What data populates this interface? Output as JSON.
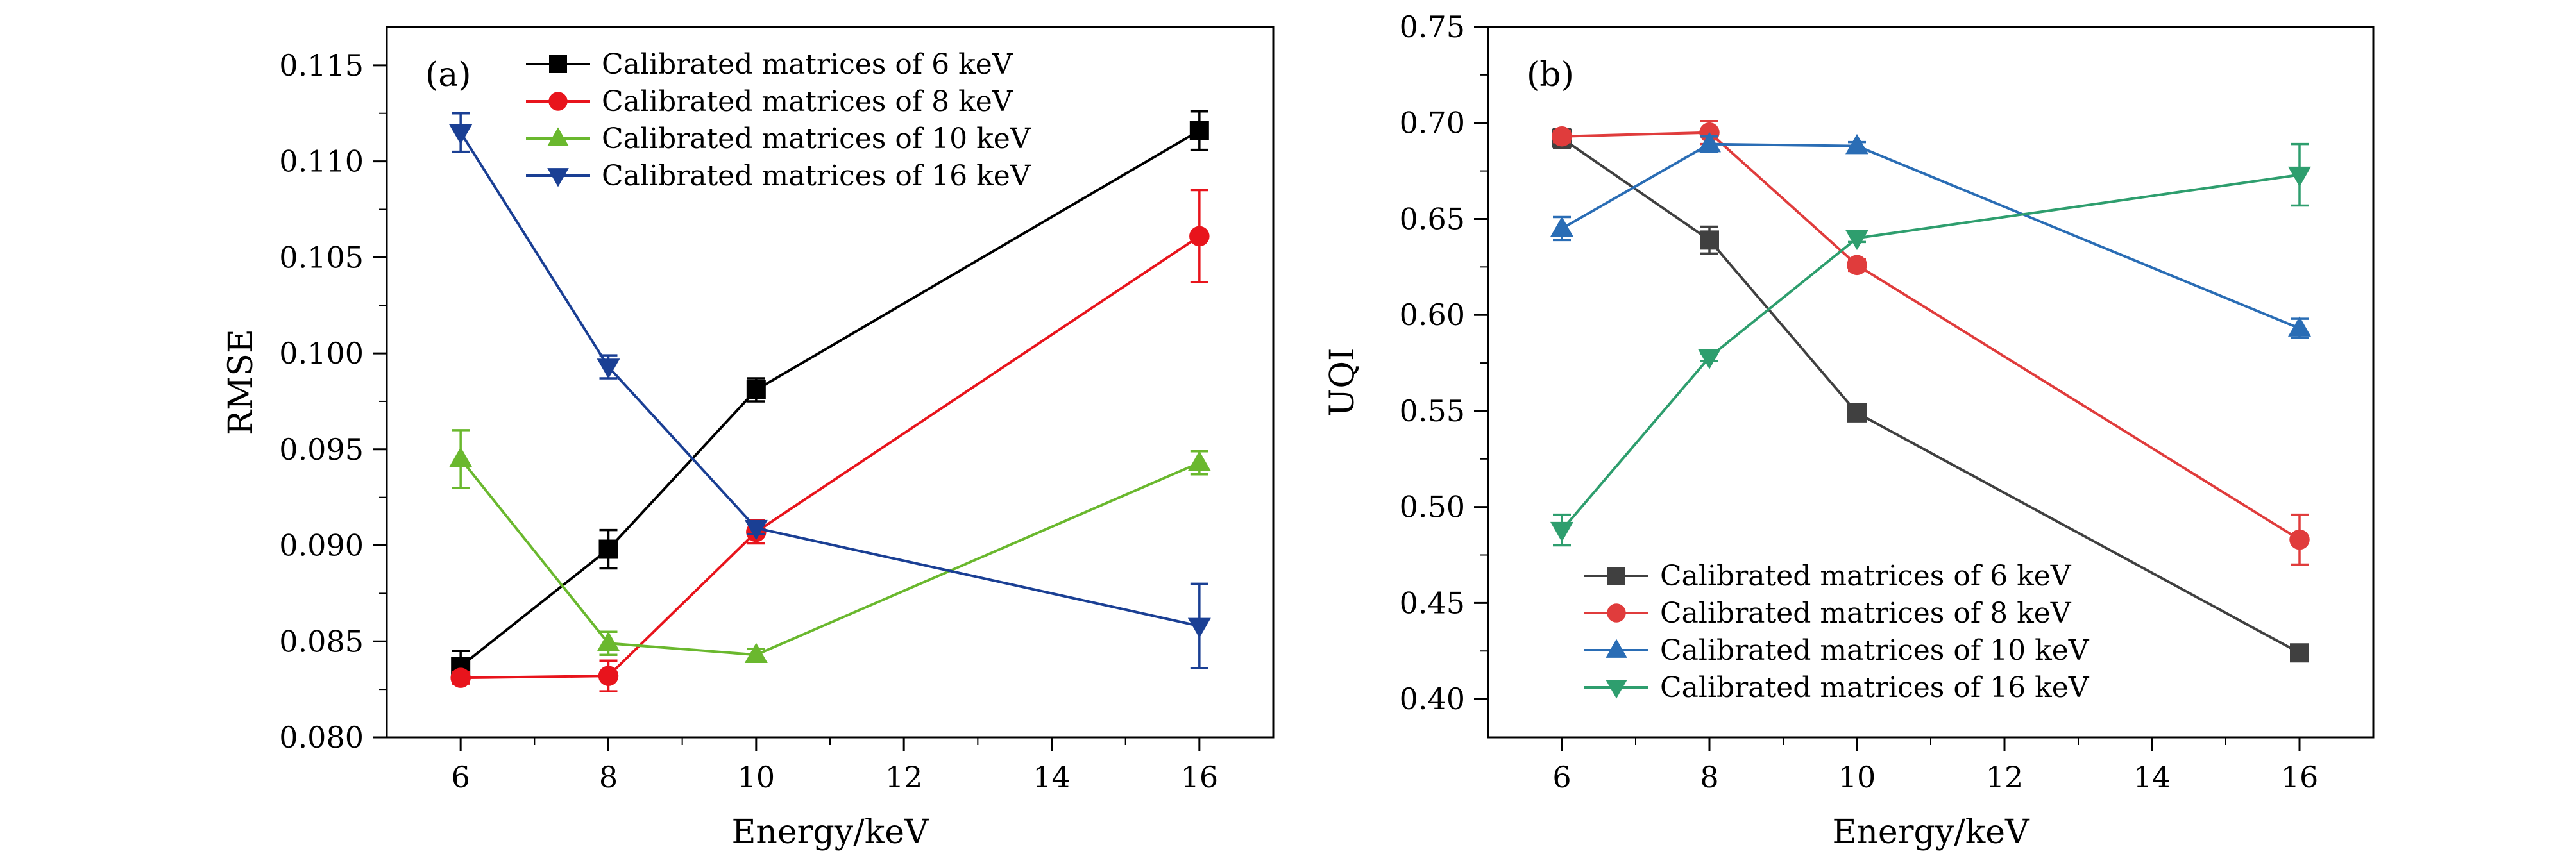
{
  "chart_data": [
    {
      "type": "line",
      "panel_label": "(a)",
      "xlabel": "Energy/keV",
      "ylabel": "RMSE",
      "xlim": [
        5,
        17
      ],
      "ylim": [
        0.08,
        0.117
      ],
      "xticks": [
        6,
        8,
        10,
        12,
        14,
        16
      ],
      "xtick_labels": [
        "6",
        "8",
        "10",
        "12",
        "14",
        "16"
      ],
      "yticks": [
        0.08,
        0.085,
        0.09,
        0.095,
        0.1,
        0.105,
        0.11,
        0.115
      ],
      "ytick_labels": [
        "0.080",
        "0.085",
        "0.090",
        "0.095",
        "0.100",
        "0.105",
        "0.110",
        "0.115"
      ],
      "legend_position": "top-right",
      "grid": false,
      "series": [
        {
          "name": "Calibrated matrices of 6 keV",
          "color": "#000000",
          "marker": "square",
          "x": [
            6,
            8,
            10,
            16
          ],
          "y": [
            0.0837,
            0.0898,
            0.0981,
            0.1116
          ],
          "err": [
            0.0008,
            0.001,
            0.0006,
            0.001
          ]
        },
        {
          "name": "Calibrated matrices of 8 keV",
          "color": "#e8141c",
          "marker": "circle",
          "x": [
            6,
            8,
            10,
            16
          ],
          "y": [
            0.0831,
            0.0832,
            0.0907,
            0.1061
          ],
          "err": [
            0.0003,
            0.0008,
            0.0006,
            0.0024
          ]
        },
        {
          "name": "Calibrated matrices of 10 keV",
          "color": "#6ab82e",
          "marker": "triangle-up",
          "x": [
            6,
            8,
            10,
            16
          ],
          "y": [
            0.0945,
            0.0849,
            0.0843,
            0.0943
          ],
          "err": [
            0.0015,
            0.0006,
            0.0003,
            0.0006
          ]
        },
        {
          "name": "Calibrated matrices of 16 keV",
          "color": "#1a3f94",
          "marker": "triangle-down",
          "x": [
            6,
            8,
            10,
            16
          ],
          "y": [
            0.1115,
            0.0993,
            0.0909,
            0.0858
          ],
          "err": [
            0.001,
            0.0006,
            0.0003,
            0.0022
          ]
        }
      ]
    },
    {
      "type": "line",
      "panel_label": "(b)",
      "xlabel": "Energy/keV",
      "ylabel": "UQI",
      "xlim": [
        5,
        17
      ],
      "ylim": [
        0.38,
        0.75
      ],
      "xticks": [
        6,
        8,
        10,
        12,
        14,
        16
      ],
      "xtick_labels": [
        "6",
        "8",
        "10",
        "12",
        "14",
        "16"
      ],
      "yticks": [
        0.4,
        0.45,
        0.5,
        0.55,
        0.6,
        0.65,
        0.7,
        0.75
      ],
      "ytick_labels": [
        "0.40",
        "0.45",
        "0.50",
        "0.55",
        "0.60",
        "0.65",
        "0.70",
        "0.75"
      ],
      "legend_position": "bottom-left",
      "grid": false,
      "series": [
        {
          "name": "Calibrated matrices of 6 keV",
          "color": "#404040",
          "marker": "square",
          "x": [
            6,
            8,
            10,
            16
          ],
          "y": [
            0.692,
            0.639,
            0.549,
            0.424
          ],
          "err": [
            0.005,
            0.007,
            0.004,
            0.002
          ]
        },
        {
          "name": "Calibrated matrices of 8 keV",
          "color": "#e03c3c",
          "marker": "circle",
          "x": [
            6,
            8,
            10,
            16
          ],
          "y": [
            0.693,
            0.695,
            0.626,
            0.483
          ],
          "err": [
            0.003,
            0.006,
            0.003,
            0.013
          ]
        },
        {
          "name": "Calibrated matrices of 10 keV",
          "color": "#2a6db5",
          "marker": "triangle-up",
          "x": [
            6,
            8,
            10,
            16
          ],
          "y": [
            0.645,
            0.689,
            0.688,
            0.593
          ],
          "err": [
            0.006,
            0.004,
            0.002,
            0.005
          ]
        },
        {
          "name": "Calibrated matrices of 16 keV",
          "color": "#2e9e6e",
          "marker": "triangle-down",
          "x": [
            6,
            8,
            10,
            16
          ],
          "y": [
            0.488,
            0.578,
            0.64,
            0.673
          ],
          "err": [
            0.008,
            0.002,
            0.002,
            0.016
          ]
        }
      ]
    }
  ]
}
